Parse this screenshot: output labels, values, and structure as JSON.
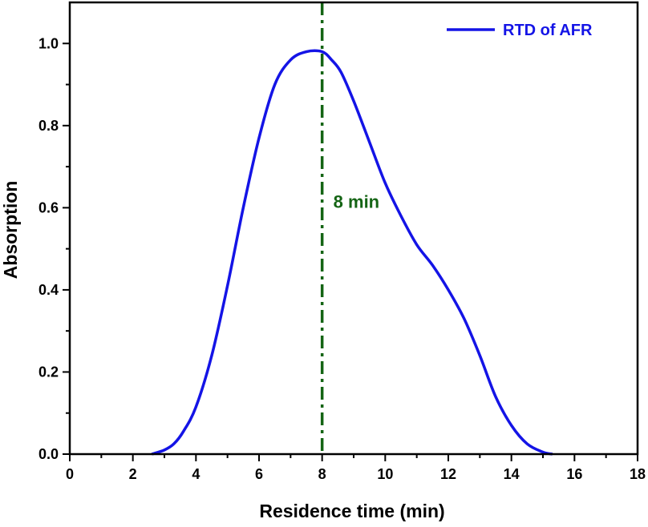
{
  "chart_data": {
    "type": "line",
    "title": "",
    "xlabel": "Residence time (min)",
    "ylabel": "Absorption",
    "xlim": [
      0,
      18
    ],
    "ylim": [
      0,
      1.1
    ],
    "x_ticks": [
      "0",
      "2",
      "4",
      "6",
      "8",
      "10",
      "12",
      "14",
      "16",
      "18"
    ],
    "y_ticks": [
      "0.0",
      "0.2",
      "0.4",
      "0.6",
      "0.8",
      "1.0"
    ],
    "grid": false,
    "legend_position": "top-right",
    "series": [
      {
        "name": "RTD of AFR",
        "color": "#1414e6",
        "x": [
          2.6,
          3.0,
          3.3,
          3.6,
          4.0,
          4.5,
          5.0,
          5.5,
          6.0,
          6.5,
          7.0,
          7.5,
          8.0,
          8.3,
          8.6,
          9.0,
          9.5,
          10.0,
          10.5,
          11.0,
          11.5,
          12.0,
          12.5,
          13.0,
          13.5,
          14.0,
          14.5,
          15.0,
          15.3
        ],
        "y": [
          0.0,
          0.01,
          0.025,
          0.055,
          0.115,
          0.24,
          0.41,
          0.6,
          0.77,
          0.9,
          0.96,
          0.98,
          0.98,
          0.96,
          0.93,
          0.86,
          0.76,
          0.66,
          0.58,
          0.51,
          0.46,
          0.4,
          0.33,
          0.24,
          0.14,
          0.07,
          0.025,
          0.005,
          0.0
        ]
      }
    ],
    "annotations": [
      {
        "text": "8 min",
        "x": 8,
        "color": "#146414",
        "linestyle": "dash-dot"
      }
    ]
  }
}
